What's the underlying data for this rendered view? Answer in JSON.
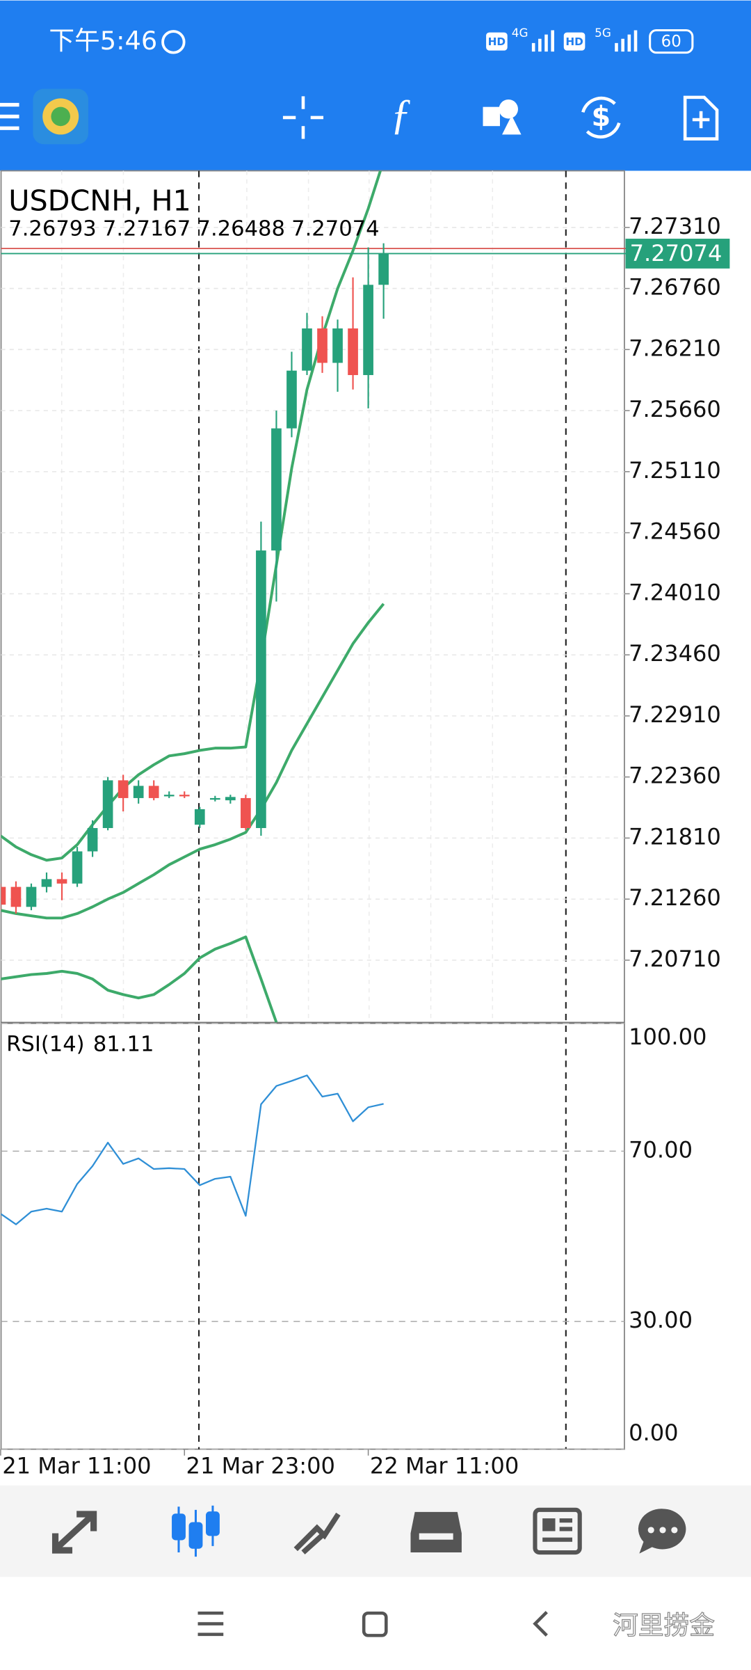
{
  "status_bar": {
    "time": "下午5:46",
    "hd": "HD",
    "network": [
      "4G",
      "5G"
    ],
    "battery": "60"
  },
  "chart_data": {
    "type": "candlestick",
    "symbol": "USDCNH, H1",
    "categories": [
      "21 Mar 11:00",
      null,
      null,
      null,
      null,
      null,
      null,
      null,
      null,
      null,
      null,
      null,
      "21 Mar 23:00",
      null,
      null,
      null,
      null,
      null,
      null,
      null,
      null,
      null,
      null,
      null,
      "22 Mar 11:00",
      null
    ],
    "candles": [
      {
        "open": 7.2137,
        "high": 7.214,
        "low": 7.2116,
        "close": 7.2121
      },
      {
        "open": 7.2137,
        "high": 7.2142,
        "low": 7.2113,
        "close": 7.2119
      },
      {
        "open": 7.2119,
        "high": 7.214,
        "low": 7.2116,
        "close": 7.2137
      },
      {
        "open": 7.2137,
        "high": 7.215,
        "low": 7.2132,
        "close": 7.2144
      },
      {
        "open": 7.2144,
        "high": 7.215,
        "low": 7.2125,
        "close": 7.214
      },
      {
        "open": 7.214,
        "high": 7.2173,
        "low": 7.2137,
        "close": 7.2169
      },
      {
        "open": 7.2169,
        "high": 7.2197,
        "low": 7.2164,
        "close": 7.219
      },
      {
        "open": 7.219,
        "high": 7.2236,
        "low": 7.2188,
        "close": 7.2233
      },
      {
        "open": 7.2233,
        "high": 7.2238,
        "low": 7.2205,
        "close": 7.2217
      },
      {
        "open": 7.2217,
        "high": 7.2233,
        "low": 7.2212,
        "close": 7.2228
      },
      {
        "open": 7.2228,
        "high": 7.2233,
        "low": 7.2215,
        "close": 7.2217
      },
      {
        "open": 7.2219,
        "high": 7.2223,
        "low": 7.2217,
        "close": 7.222
      },
      {
        "open": 7.222,
        "high": 7.2223,
        "low": 7.2217,
        "close": 7.2219
      },
      {
        "open": 7.2193,
        "high": 7.2209,
        "low": 7.219,
        "close": 7.2207
      },
      {
        "open": 7.2216,
        "high": 7.2219,
        "low": 7.2214,
        "close": 7.2217
      },
      {
        "open": 7.2215,
        "high": 7.222,
        "low": 7.2212,
        "close": 7.2218
      },
      {
        "open": 7.2217,
        "high": 7.222,
        "low": 7.2188,
        "close": 7.219
      },
      {
        "open": 7.219,
        "high": 7.2466,
        "low": 7.2183,
        "close": 7.244
      },
      {
        "open": 7.244,
        "high": 7.2566,
        "low": 7.2394,
        "close": 7.255
      },
      {
        "open": 7.255,
        "high": 7.2619,
        "low": 7.2542,
        "close": 7.2602
      },
      {
        "open": 7.2602,
        "high": 7.2654,
        "low": 7.2598,
        "close": 7.264
      },
      {
        "open": 7.264,
        "high": 7.2651,
        "low": 7.26,
        "close": 7.2609
      },
      {
        "open": 7.2609,
        "high": 7.2648,
        "low": 7.2583,
        "close": 7.264
      },
      {
        "open": 7.264,
        "high": 7.2686,
        "low": 7.2585,
        "close": 7.2598
      },
      {
        "open": 7.2598,
        "high": 7.2713,
        "low": 7.2568,
        "close": 7.26793
      },
      {
        "open": 7.26793,
        "high": 7.27167,
        "low": 7.26488,
        "close": 7.27074
      }
    ],
    "colors": {
      "up": "#26a17b",
      "down": "#ef5350"
    },
    "ylim": [
      7.2015,
      7.2782
    ],
    "yticks": [
      {
        "value": 7.2731,
        "label": "7.27310"
      },
      {
        "value": 7.2676,
        "label": "7.26760"
      },
      {
        "value": 7.2621,
        "label": "7.26210"
      },
      {
        "value": 7.2566,
        "label": "7.25660"
      },
      {
        "value": 7.2511,
        "label": "7.25110"
      },
      {
        "value": 7.2456,
        "label": "7.24560"
      },
      {
        "value": 7.2401,
        "label": "7.24010"
      },
      {
        "value": 7.2346,
        "label": "7.23460"
      },
      {
        "value": 7.2291,
        "label": "7.22910"
      },
      {
        "value": 7.2236,
        "label": "7.22360"
      },
      {
        "value": 7.2181,
        "label": "7.21810"
      },
      {
        "value": 7.2126,
        "label": "7.21260"
      },
      {
        "value": 7.2071,
        "label": "7.20710"
      }
    ],
    "grid": true,
    "bollinger": {
      "color": "#3daa6a",
      "upper": [
        7.2183,
        7.2173,
        7.2166,
        7.2161,
        7.2163,
        7.2175,
        7.2193,
        7.221,
        7.2226,
        7.2238,
        7.2247,
        7.2255,
        7.2257,
        7.226,
        7.2262,
        7.2262,
        7.2263,
        7.2341,
        7.2427,
        7.2514,
        7.2585,
        7.2633,
        7.2676,
        7.271,
        7.2748,
        7.2791
      ],
      "middle": [
        7.2116,
        7.2113,
        7.2111,
        7.2109,
        7.2109,
        7.2113,
        7.2119,
        7.2126,
        7.2132,
        7.214,
        7.2148,
        7.2157,
        7.2164,
        7.2171,
        7.2175,
        7.218,
        7.2186,
        7.2207,
        7.2231,
        7.226,
        7.2284,
        7.2308,
        7.2332,
        7.2356,
        7.2375,
        7.2392
      ],
      "lower": [
        7.2054,
        7.2056,
        7.2058,
        7.2059,
        7.2061,
        7.2059,
        7.2054,
        7.2044,
        7.204,
        7.2037,
        7.204,
        7.2049,
        7.2059,
        7.2073,
        7.2081,
        7.2086,
        7.2092,
        7.2054,
        7.2015,
        null,
        null,
        null,
        null,
        null,
        null,
        null
      ]
    },
    "rsi": {
      "label": "RSI(14)",
      "color": "#2f8fd6",
      "values": [
        55.3,
        52.8,
        55.8,
        56.5,
        55.8,
        62.3,
        66.5,
        72,
        67,
        68.3,
        65.8,
        66,
        65.8,
        62,
        63.5,
        64,
        54.8,
        81,
        85.3,
        86.5,
        87.8,
        82.8,
        83.5,
        77,
        80.3,
        81.11
      ],
      "ylim": [
        0,
        100
      ],
      "yticks": [
        {
          "value": 100,
          "label": "100.00"
        },
        {
          "value": 70,
          "label": "70.00"
        },
        {
          "value": 30,
          "label": "30.00"
        },
        {
          "value": 0,
          "label": "0.00"
        }
      ]
    }
  },
  "watermark": "河里捞金"
}
